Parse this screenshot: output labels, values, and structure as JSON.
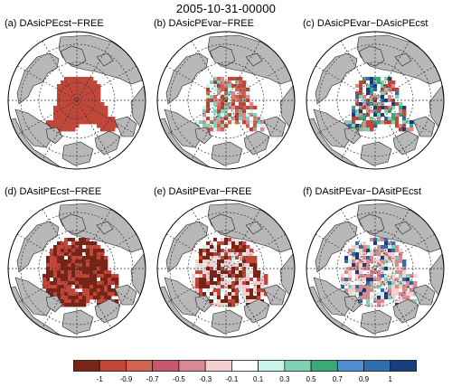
{
  "title": "2005-10-31-00000",
  "panels": [
    {
      "label": "(a) DAsicPEcst−FREE",
      "field": "sic_cst"
    },
    {
      "label": "(b) DAsicPEvar−FREE",
      "field": "sic_var"
    },
    {
      "label": "(c) DAsicPEvar−DAsicPEcst",
      "field": "sic_diff"
    },
    {
      "label": "(d) DAsitPEcst−FREE",
      "field": "sit_cst"
    },
    {
      "label": "(e) DAsitPEvar−FREE",
      "field": "sit_var"
    },
    {
      "label": "(f) DAsitPEvar−DAsitPEcst",
      "field": "sit_diff"
    }
  ],
  "colorbar": {
    "labels": [
      "-1",
      "-0.9",
      "-0.7",
      "-0.5",
      "-0.3",
      "-0.1",
      "0.1",
      "0.3",
      "0.5",
      "0.7",
      "0.9",
      "1"
    ],
    "colors": [
      "#7a2417",
      "#c0473a",
      "#d0644f",
      "#c9576b",
      "#d98a90",
      "#f3cfd0",
      "#ffffff",
      "#ccf2ec",
      "#7fd1b3",
      "#3aa978",
      "#4d8fd0",
      "#2f6eaf",
      "#173f80"
    ]
  },
  "colors": {
    "land": "#b8b8b8",
    "ocean": "#ffffff",
    "grid": "#333333"
  }
}
